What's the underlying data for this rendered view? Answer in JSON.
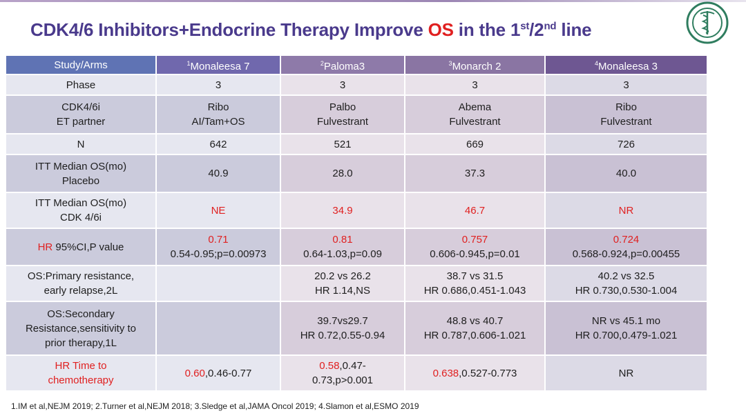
{
  "slide": {
    "title_part1": "CDK4/6 Inhibitors+Endocrine Therapy Improve ",
    "title_red": "OS",
    "title_part2": " in the 1",
    "title_sup1": "st",
    "title_part3": "/2",
    "title_sup2": "nd",
    "title_part4": " line",
    "logo_icon": "university-seal-icon"
  },
  "table": {
    "header": {
      "label": "Study/Arms",
      "studies": [
        {
          "sup": "1",
          "name": "Monaleesa 7"
        },
        {
          "sup": "2",
          "name": "Paloma3"
        },
        {
          "sup": "3",
          "name": "Monarch 2"
        },
        {
          "sup": "4",
          "name": "Monaleesa 3"
        }
      ]
    },
    "rows": {
      "phase": {
        "label": "Phase",
        "values": [
          "3",
          "3",
          "3",
          "3"
        ]
      },
      "cdk": {
        "label1": "CDK4/6i",
        "label2": "ET partner",
        "values": [
          {
            "l1": "Ribo",
            "l2": "AI/Tam+OS"
          },
          {
            "l1": "Palbo",
            "l2": "Fulvestrant"
          },
          {
            "l1": "Abema",
            "l2": "Fulvestrant"
          },
          {
            "l1": "Ribo",
            "l2": "Fulvestrant"
          }
        ]
      },
      "n": {
        "label": "N",
        "values": [
          "642",
          "521",
          "669",
          "726"
        ]
      },
      "placebo": {
        "label1": "ITT Median OS(mo)",
        "label2": "Placebo",
        "values": [
          "40.9",
          "28.0",
          "37.3",
          "40.0"
        ]
      },
      "cdkos": {
        "label1": "ITT Median OS(mo)",
        "label2": "CDK 4/6i",
        "values": [
          "NE",
          "34.9",
          "46.7",
          "NR"
        ]
      },
      "hr": {
        "label_red": "HR",
        "label_rest": " 95%CI,P value",
        "values": [
          {
            "hr": "0.71",
            "ci": "0.54-0.95;p=0.00973"
          },
          {
            "hr": "0.81",
            "ci": "0.64-1.03,p=0.09"
          },
          {
            "hr": "0.757",
            "ci": "0.606-0.945,p=0.01"
          },
          {
            "hr": "0.724",
            "ci": "0.568-0.924,p=0.00455"
          }
        ]
      },
      "primary": {
        "label1": "OS:Primary resistance,",
        "label2": "early relapse,2L",
        "values": [
          {
            "l1": "",
            "l2": ""
          },
          {
            "l1": "20.2 vs 26.2",
            "l2": "HR 1.14,NS"
          },
          {
            "l1": "38.7 vs 31.5",
            "l2": "HR 0.686,0.451-1.043"
          },
          {
            "l1": "40.2 vs 32.5",
            "l2": "HR 0.730,0.530-1.004"
          }
        ]
      },
      "secondary": {
        "label1": "OS:Secondary",
        "label2": "Resistance,sensitivity to",
        "label3": "prior therapy,1L",
        "values": [
          {
            "l1": "",
            "l2": ""
          },
          {
            "l1": "39.7vs29.7",
            "l2": "HR 0.72,0.55-0.94"
          },
          {
            "l1": "48.8 vs 40.7",
            "l2": "HR 0.787,0.606-1.021"
          },
          {
            "l1": "NR vs 45.1 mo",
            "l2": "HR 0.700,0.479-1.021"
          }
        ]
      },
      "chemo": {
        "label1": "HR Time to",
        "label2": "chemotherapy",
        "values": [
          {
            "red": "0.60",
            "rest": ",0.46-0.77",
            "l2": ""
          },
          {
            "red": "0.58",
            "rest": ",0.47-",
            "l2": "0.73,p>0.001"
          },
          {
            "red": "0.638",
            "rest": ",0.527-0.773",
            "l2": ""
          },
          {
            "red": "",
            "rest": "NR",
            "l2": ""
          }
        ]
      }
    }
  },
  "references": "1.IM et al,NEJM 2019;  2.Turner et al,NEJM 2018;  3.Sledge et al,JAMA Oncol 2019;  4.Slamon et al,ESMO 2019",
  "colors": {
    "title": "#4a3a8c",
    "accent_red": "#e02020",
    "header": "#7068ad"
  }
}
